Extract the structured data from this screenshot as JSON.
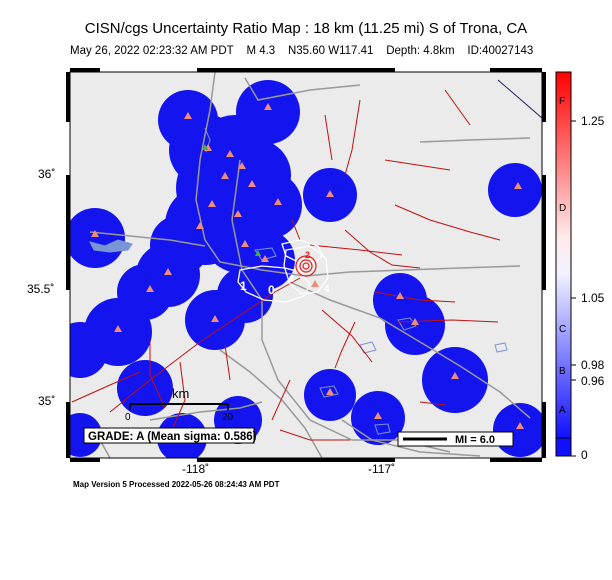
{
  "map": {
    "title": "CISN/cgs Uncertainty Ratio Map : 18 km (11.25 mi) S of Trona, CA",
    "subtitle": {
      "datetime": "May 26, 2022 02:23:32 AM PDT",
      "magnitude": "M 4.3",
      "location": "N35.60 W117.41",
      "depth": "Depth: 4.8km",
      "id": "ID:40027143"
    },
    "lat_labels": [
      "36˚",
      "35.5˚",
      "35˚"
    ],
    "lon_labels": [
      "-118˚",
      "-117˚"
    ],
    "grade_label": "GRADE: A (Mean sigma: 0.586)",
    "mi_label": "MI = 6.0",
    "scale": {
      "unit": "km",
      "ticks": [
        "0",
        "20"
      ]
    },
    "contour_labels": [
      "1",
      "0",
      "8",
      "2",
      "4"
    ],
    "footer": "Map Version 5 Processed 2022-05-26 08:24:43 AM PDT"
  },
  "colorbar": {
    "values": [
      "1.25",
      "1.05",
      "0.98",
      "0.96",
      "0"
    ],
    "letters": [
      "F",
      "D",
      "C",
      "B",
      "A"
    ]
  },
  "colors": {
    "land": "#ebebeb",
    "coverage": "#1414ee",
    "faults": "#c01010",
    "stations": "#f08c7c",
    "roads": "#999999",
    "water": "#7a95d6"
  }
}
